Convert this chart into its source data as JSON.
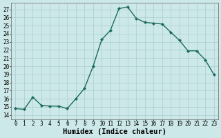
{
  "x": [
    0,
    1,
    2,
    3,
    4,
    5,
    6,
    7,
    8,
    9,
    10,
    11,
    12,
    13,
    14,
    15,
    16,
    17,
    18,
    19,
    20,
    21,
    22,
    23
  ],
  "y": [
    14.8,
    14.7,
    16.2,
    15.2,
    15.1,
    15.1,
    14.8,
    16.0,
    17.3,
    20.0,
    23.3,
    24.4,
    27.1,
    27.3,
    25.9,
    25.4,
    25.3,
    25.2,
    24.2,
    23.2,
    21.9,
    21.9,
    20.8,
    19.0
  ],
  "line_color": "#1a6b5e",
  "marker": "D",
  "markersize": 2.0,
  "linewidth": 1.0,
  "bg_color": "#cce8e8",
  "grid_color": "#aacece",
  "xlabel": "Humidex (Indice chaleur)",
  "ylim": [
    13.5,
    27.8
  ],
  "xlim": [
    -0.5,
    23.5
  ],
  "yticks": [
    14,
    15,
    16,
    17,
    18,
    19,
    20,
    21,
    22,
    23,
    24,
    25,
    26,
    27
  ],
  "xticks": [
    0,
    1,
    2,
    3,
    4,
    5,
    6,
    7,
    8,
    9,
    10,
    11,
    12,
    13,
    14,
    15,
    16,
    17,
    18,
    19,
    20,
    21,
    22,
    23
  ],
  "xlabel_fontsize": 7.5,
  "tick_fontsize": 5.5
}
